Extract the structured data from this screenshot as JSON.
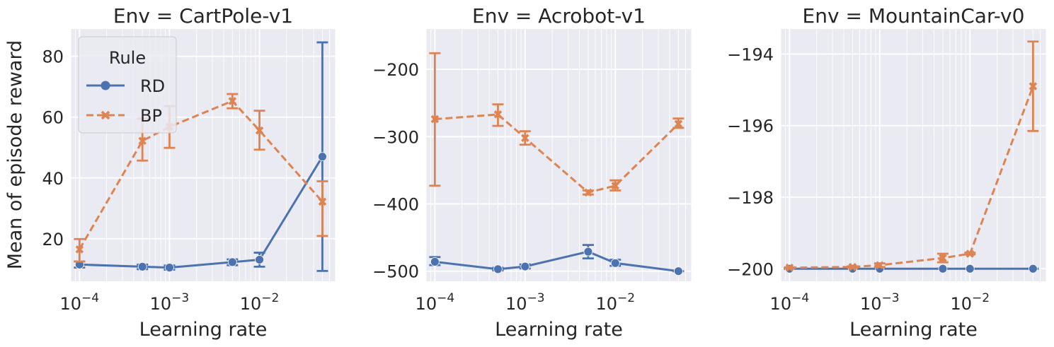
{
  "figure": {
    "ylabel": "Mean of episode reward",
    "xlabel": "Learning rate"
  },
  "legend": {
    "title": "Rule",
    "entries": [
      {
        "name": "RD",
        "color": "#4c72b0",
        "marker": "circle",
        "dash": "solid"
      },
      {
        "name": "BP",
        "color": "#dd8452",
        "marker": "x",
        "dash": "dashed"
      }
    ]
  },
  "chart_data": [
    {
      "type": "line",
      "title": "Env = CartPole-v1",
      "xlabel": "Learning rate",
      "ylabel": "Mean of episode reward",
      "x_scale": "log",
      "x": [
        0.0001,
        0.0005,
        0.001,
        0.005,
        0.01,
        0.05
      ],
      "x_ticks": [
        {
          "value": 0.0001,
          "label": "10^-4"
        },
        {
          "value": 0.001,
          "label": "10^-3"
        },
        {
          "value": 0.01,
          "label": "10^-2"
        }
      ],
      "y_ticks": [
        20,
        40,
        60,
        80
      ],
      "ylim": [
        6,
        89
      ],
      "series": [
        {
          "name": "RD",
          "values": [
            11.5,
            10.8,
            10.5,
            12.3,
            13.1,
            47.0
          ],
          "lower": [
            10.5,
            10.0,
            9.8,
            11.3,
            10.8,
            9.4
          ],
          "upper": [
            12.5,
            11.5,
            11.2,
            13.2,
            15.4,
            84.6
          ]
        },
        {
          "name": "BP",
          "values": [
            16.5,
            52.2,
            56.8,
            65.3,
            55.6,
            32.2
          ],
          "lower": [
            12.5,
            45.7,
            49.9,
            62.9,
            49.3,
            20.9
          ],
          "upper": [
            19.9,
            59.5,
            63.6,
            67.6,
            62.1,
            38.9
          ]
        }
      ]
    },
    {
      "type": "line",
      "title": "Env = Acrobot-v1",
      "xlabel": "Learning rate",
      "x_scale": "log",
      "x": [
        0.0001,
        0.0005,
        0.001,
        0.005,
        0.01,
        0.05
      ],
      "x_ticks": [
        {
          "value": 0.0001,
          "label": "10^-4"
        },
        {
          "value": 0.001,
          "label": "10^-3"
        },
        {
          "value": 0.01,
          "label": "10^-2"
        }
      ],
      "y_ticks": [
        -500,
        -400,
        -300,
        -200
      ],
      "ylim": [
        -515,
        -140
      ],
      "series": [
        {
          "name": "RD",
          "values": [
            -486,
            -497,
            -493,
            -471,
            -488,
            -500
          ],
          "lower": [
            -491,
            -499,
            -496,
            -481,
            -492,
            -500
          ],
          "upper": [
            -479,
            -495,
            -490,
            -461,
            -483,
            -500
          ]
        },
        {
          "name": "BP",
          "values": [
            -274,
            -267,
            -302,
            -383,
            -373,
            -281
          ],
          "lower": [
            -373,
            -284,
            -312,
            -386,
            -380,
            -287
          ],
          "upper": [
            -176,
            -252,
            -292,
            -380,
            -365,
            -273
          ]
        }
      ]
    },
    {
      "type": "line",
      "title": "Env = MountainCar-v0",
      "xlabel": "Learning rate",
      "x_scale": "log",
      "x": [
        0.0001,
        0.0005,
        0.001,
        0.005,
        0.01,
        0.05
      ],
      "x_ticks": [
        {
          "value": 0.0001,
          "label": "10^-4"
        },
        {
          "value": 0.001,
          "label": "10^-3"
        },
        {
          "value": 0.01,
          "label": "10^-2"
        }
      ],
      "y_ticks": [
        -200,
        -198,
        -196,
        -194
      ],
      "ylim": [
        -200.35,
        -193.3
      ],
      "series": [
        {
          "name": "RD",
          "values": [
            -200,
            -200,
            -200,
            -200,
            -200,
            -200
          ],
          "lower": [
            -200,
            -200,
            -200,
            -200,
            -200,
            -200
          ],
          "upper": [
            -200,
            -200,
            -200,
            -200,
            -200,
            -200
          ]
        },
        {
          "name": "BP",
          "values": [
            -199.97,
            -199.95,
            -199.9,
            -199.7,
            -199.58,
            -194.9
          ],
          "lower": [
            -199.98,
            -199.97,
            -199.95,
            -199.82,
            -199.6,
            -196.15
          ],
          "upper": [
            -199.96,
            -199.93,
            -199.85,
            -199.58,
            -199.55,
            -193.65
          ]
        }
      ]
    }
  ]
}
